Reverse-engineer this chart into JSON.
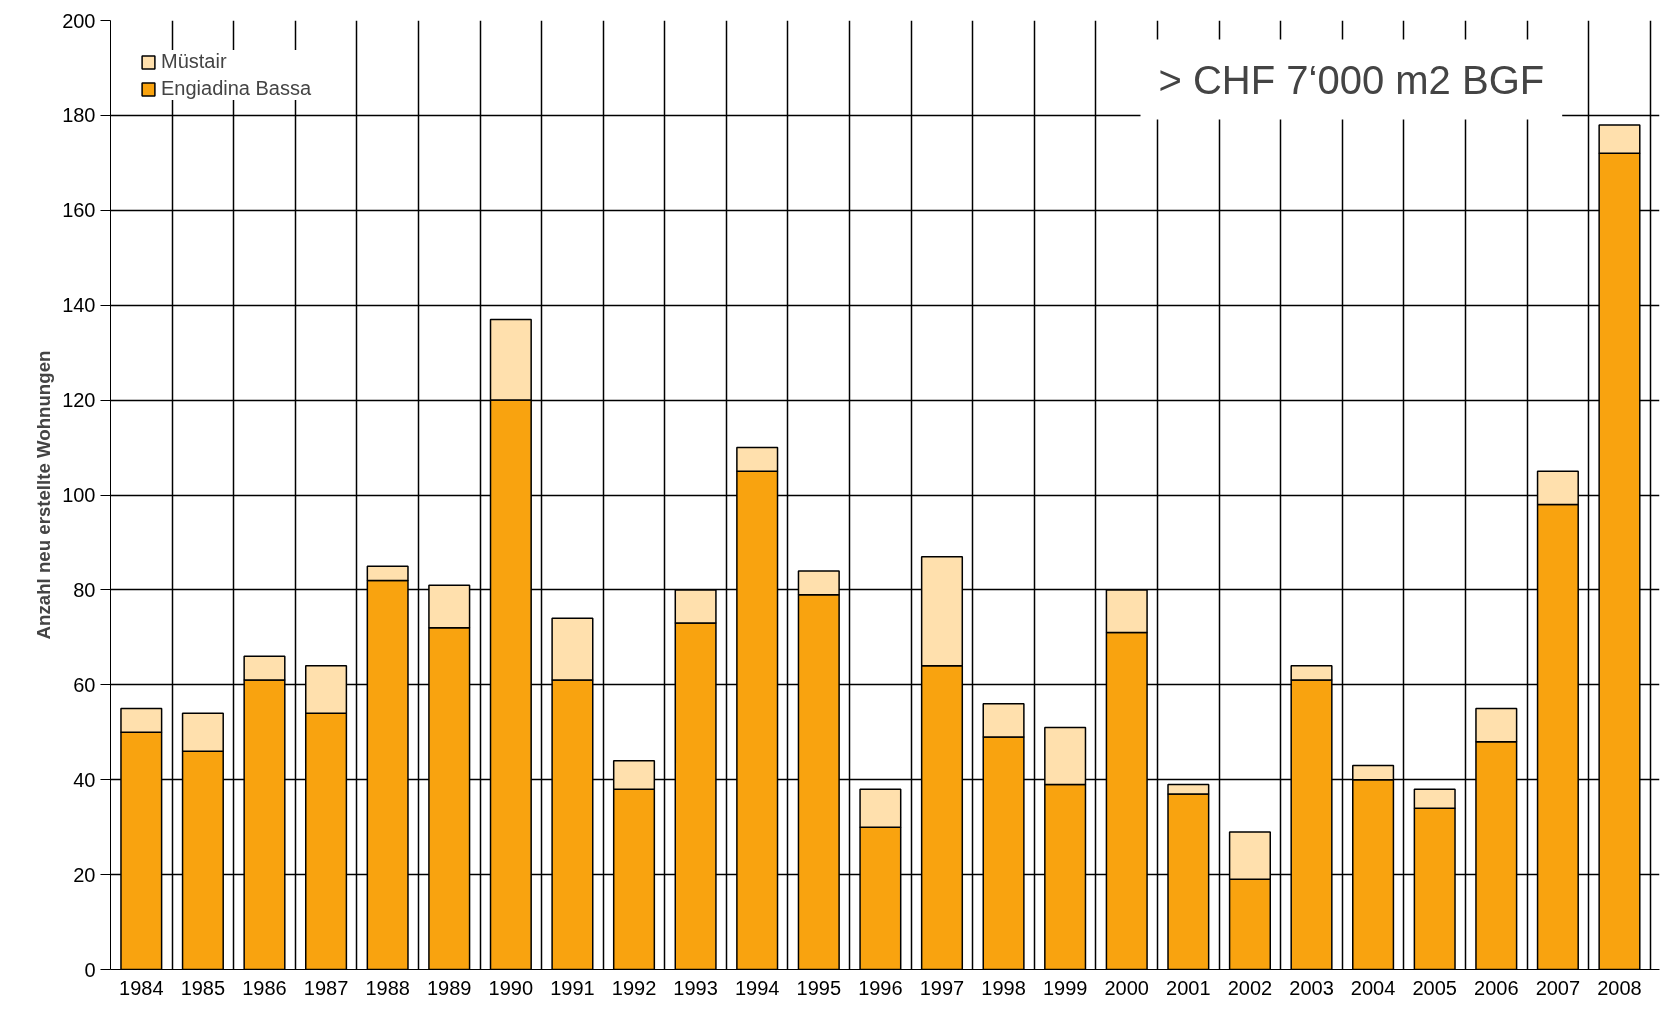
{
  "chart_data": {
    "type": "bar",
    "stacked": true,
    "ylabel": "Anzahl neu erstellte Wohnungen",
    "categories": [
      "1984",
      "1985",
      "1986",
      "1987",
      "1988",
      "1989",
      "1990",
      "1991",
      "1992",
      "1993",
      "1994",
      "1995",
      "1996",
      "1997",
      "1998",
      "1999",
      "2000",
      "2001",
      "2002",
      "2003",
      "2004",
      "2005",
      "2006",
      "2007",
      "2008"
    ],
    "series": [
      {
        "name": "Engiadina Bassa",
        "color": "#f9a30f",
        "values": [
          50,
          46,
          61,
          54,
          82,
          72,
          120,
          61,
          38,
          73,
          105,
          79,
          30,
          64,
          49,
          39,
          71,
          37,
          19,
          61,
          40,
          34,
          48,
          98,
          172
        ]
      },
      {
        "name": "Müstair",
        "color": "#ffe0ad",
        "values": [
          5,
          8,
          5,
          10,
          3,
          9,
          17,
          13,
          6,
          7,
          5,
          5,
          8,
          23,
          7,
          12,
          9,
          2,
          10,
          3,
          3,
          4,
          7,
          7,
          6
        ]
      }
    ],
    "ylim": [
      0,
      200
    ],
    "yticks": [
      0,
      20,
      40,
      60,
      80,
      100,
      120,
      140,
      160,
      180,
      200
    ],
    "grid": true,
    "legend": "top left",
    "annotations": [
      "> CHF 7‘000 m2 BGF"
    ]
  }
}
